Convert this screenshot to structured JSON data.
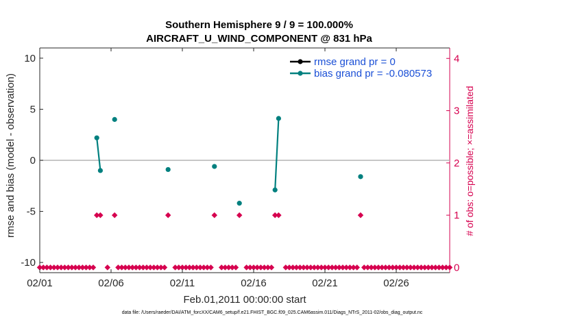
{
  "chart_data": {
    "type": "line",
    "title": "Southern Hemisphere 9 / 9 = 100.000%",
    "subtitle": "AIRCRAFT_U_WIND_COMPONENT @ 831 hPa",
    "ylabel": "rmse and bias (model - observation)",
    "ylabel_right": "# of obs: o=possible; ×=assimilated",
    "xlabel": "Feb.01,2011 00:00:00 start",
    "footnote": "data file: /Users/raeder/DAI/ATM_forcXX/CAM6_setup/f.e21.FHIST_BGC.f09_025.CAM6assim.011/Diags_NTrS_2011-02/obs_diag_output.nc",
    "xlim": [
      1,
      29.75
    ],
    "ylim": [
      -11,
      11
    ],
    "ylim_right": [
      -0.1,
      4.2
    ],
    "xticks": [
      1,
      6,
      11,
      16,
      21,
      26
    ],
    "xtick_labels": [
      "02/01",
      "02/06",
      "02/11",
      "02/16",
      "02/21",
      "02/26"
    ],
    "yticks": [
      -10,
      -5,
      0,
      5,
      10
    ],
    "ytick_labels": [
      "-10",
      "-5",
      "0",
      "5",
      "10"
    ],
    "yticks_right": [
      0,
      1,
      2,
      3,
      4
    ],
    "ytick_labels_right": [
      "0",
      "1",
      "2",
      "3",
      "4"
    ],
    "series": [
      {
        "name": "rmse grand pr = 0",
        "color": "#000000",
        "points": []
      },
      {
        "name": "bias grand pr = -0.080573",
        "color": "#00807f",
        "segments": [
          [
            [
              5.0,
              2.2
            ],
            [
              5.25,
              -1.0
            ]
          ],
          [
            [
              6.25,
              4.0
            ]
          ],
          [
            [
              10.0,
              -0.9
            ]
          ],
          [
            [
              13.25,
              -0.6
            ]
          ],
          [
            [
              15.0,
              -4.2
            ]
          ],
          [
            [
              17.5,
              -2.9
            ],
            [
              17.75,
              4.1
            ]
          ],
          [
            [
              23.5,
              -1.6
            ]
          ]
        ]
      }
    ],
    "obs_count_color": "#d6004f",
    "obs_count_x_start": 1,
    "obs_count_step": 0.25,
    "obs_count_ones_x": [
      5.0,
      5.25,
      6.25,
      10.0,
      13.25,
      15.0,
      17.5,
      17.75,
      23.5
    ],
    "obs_count_gaps_x": [
      5.5,
      6.0,
      10.25,
      13.5,
      15.25,
      18.0
    ]
  }
}
